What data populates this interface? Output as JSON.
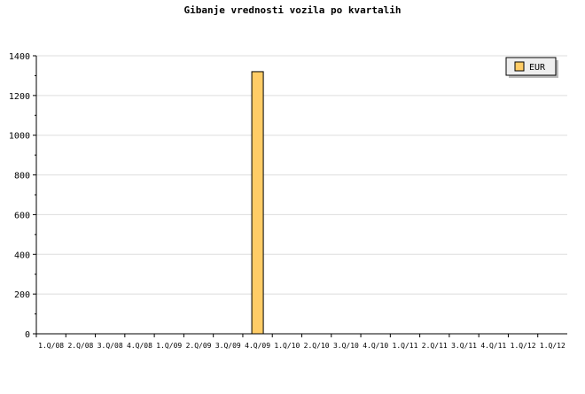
{
  "chart_data": {
    "type": "bar",
    "title": "Gibanje vrednosti vozila po kvartalih",
    "xlabel": "",
    "ylabel": "",
    "categories": [
      "1.Q/08",
      "2.Q/08",
      "3.Q/08",
      "4.Q/08",
      "1.Q/09",
      "2.Q/09",
      "3.Q/09",
      "4.Q/09",
      "1.Q/10",
      "2.Q/10",
      "3.Q/10",
      "4.Q/10",
      "1.Q/11",
      "2.Q/11",
      "3.Q/11",
      "4.Q/11",
      "1.Q/12",
      "1.Q/12"
    ],
    "series": [
      {
        "name": "EUR",
        "color": "#ffcc66",
        "values": [
          0,
          0,
          0,
          0,
          0,
          0,
          0,
          1320,
          0,
          0,
          0,
          0,
          0,
          0,
          0,
          0,
          0,
          0
        ]
      }
    ],
    "ylim": [
      0,
      1400
    ],
    "yticks": [
      0,
      200,
      400,
      600,
      800,
      1000,
      1200,
      1400
    ],
    "grid": true,
    "legend": "top-right"
  }
}
